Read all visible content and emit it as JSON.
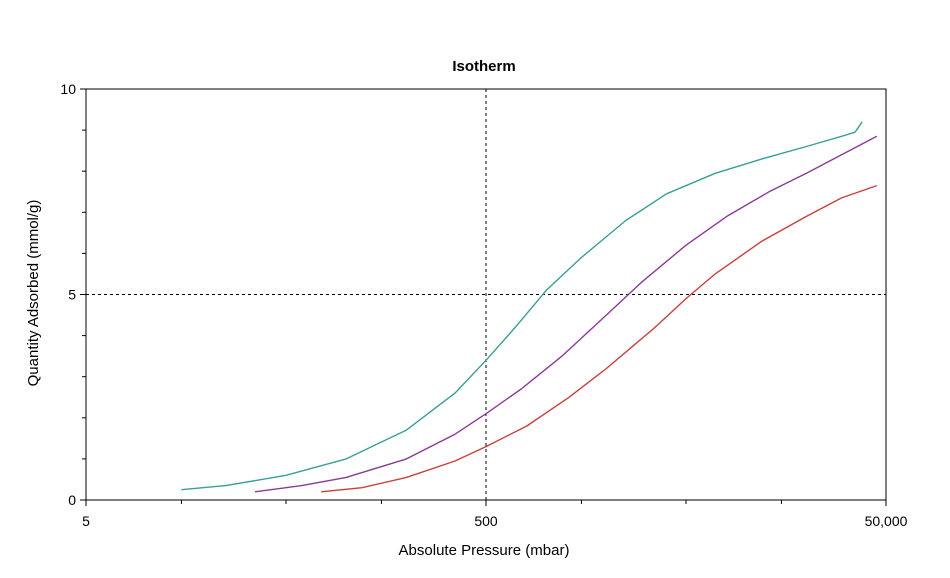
{
  "chart_data": {
    "type": "line",
    "title": "Isotherm",
    "xlabel": "Absolute Pressure (mbar)",
    "ylabel": "Quantity Adsorbed (mmol/g)",
    "x_scale": "log",
    "xlim": [
      5,
      50000
    ],
    "ylim": [
      0,
      10
    ],
    "x_tick_labels": [
      {
        "value": 5,
        "label": "5"
      },
      {
        "value": 500,
        "label": "500"
      },
      {
        "value": 50000,
        "label": "50,000"
      }
    ],
    "y_tick_labels": [
      {
        "value": 0,
        "label": "0"
      },
      {
        "value": 5,
        "label": "5"
      },
      {
        "value": 10,
        "label": "10"
      }
    ],
    "x_minor_ticks": [
      15,
      50,
      150,
      1500,
      5000,
      15000
    ],
    "y_minor_ticks": [
      1,
      2,
      3,
      4,
      6,
      7,
      8,
      9
    ],
    "reference_lines": [
      {
        "orientation": "vertical",
        "value": 500
      },
      {
        "orientation": "horizontal",
        "value": 5
      }
    ],
    "grid": false,
    "legend": "none",
    "series": [
      {
        "color": "#3a9e9a",
        "points": [
          [
            15,
            0.25
          ],
          [
            25,
            0.35
          ],
          [
            50,
            0.6
          ],
          [
            100,
            1.0
          ],
          [
            200,
            1.7
          ],
          [
            350,
            2.6
          ],
          [
            500,
            3.4
          ],
          [
            700,
            4.2
          ],
          [
            1000,
            5.1
          ],
          [
            1500,
            5.9
          ],
          [
            2500,
            6.8
          ],
          [
            4000,
            7.45
          ],
          [
            7000,
            7.95
          ],
          [
            12000,
            8.3
          ],
          [
            20000,
            8.6
          ],
          [
            30000,
            8.85
          ],
          [
            35000,
            8.95
          ],
          [
            38000,
            9.2
          ]
        ]
      },
      {
        "color": "#8b3a96",
        "points": [
          [
            35,
            0.2
          ],
          [
            60,
            0.35
          ],
          [
            100,
            0.55
          ],
          [
            200,
            1.0
          ],
          [
            350,
            1.6
          ],
          [
            500,
            2.1
          ],
          [
            750,
            2.7
          ],
          [
            1200,
            3.5
          ],
          [
            2000,
            4.5
          ],
          [
            3000,
            5.3
          ],
          [
            5000,
            6.2
          ],
          [
            8000,
            6.9
          ],
          [
            13000,
            7.5
          ],
          [
            20000,
            7.95
          ],
          [
            30000,
            8.4
          ],
          [
            45000,
            8.85
          ]
        ]
      },
      {
        "color": "#c8403a",
        "points": [
          [
            75,
            0.2
          ],
          [
            120,
            0.3
          ],
          [
            200,
            0.55
          ],
          [
            350,
            0.95
          ],
          [
            500,
            1.3
          ],
          [
            800,
            1.8
          ],
          [
            1300,
            2.5
          ],
          [
            2000,
            3.2
          ],
          [
            3500,
            4.2
          ],
          [
            5000,
            4.9
          ],
          [
            7000,
            5.5
          ],
          [
            12000,
            6.3
          ],
          [
            20000,
            6.9
          ],
          [
            30000,
            7.35
          ],
          [
            45000,
            7.65
          ]
        ]
      }
    ]
  }
}
